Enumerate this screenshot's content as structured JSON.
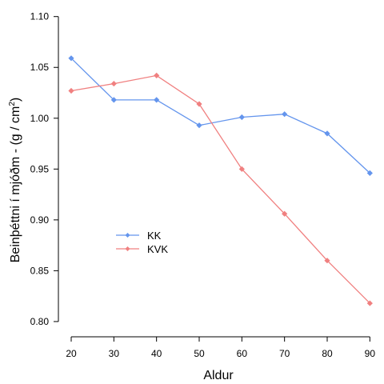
{
  "chart_data": {
    "type": "line",
    "xlabel": "Aldur",
    "ylabel": "Beinþéttni í mjóðm - (g / cm",
    "ylabel_sup": "2",
    "ylabel_close": ")",
    "x": [
      20,
      30,
      40,
      50,
      60,
      70,
      80,
      90
    ],
    "xlim": [
      17,
      92
    ],
    "ylim": [
      0.785,
      1.11
    ],
    "x_ticks": [
      20,
      30,
      40,
      50,
      60,
      70,
      80,
      90
    ],
    "y_ticks": [
      0.8,
      0.85,
      0.9,
      0.95,
      1.0,
      1.05,
      1.1
    ],
    "y_tick_labels": [
      "0.80",
      "0.85",
      "0.90",
      "0.95",
      "1.00",
      "1.05",
      "1.10"
    ],
    "grid": false,
    "legend_position": "center-left",
    "series": [
      {
        "name": "KK",
        "color": "#6495ED",
        "marker": "diamond",
        "values": [
          1.059,
          1.018,
          1.018,
          0.993,
          1.001,
          1.004,
          0.985,
          0.946
        ]
      },
      {
        "name": "KVK",
        "color": "#F08080",
        "marker": "diamond",
        "values": [
          1.027,
          1.034,
          1.042,
          1.014,
          0.95,
          0.906,
          0.86,
          0.818
        ]
      }
    ]
  }
}
